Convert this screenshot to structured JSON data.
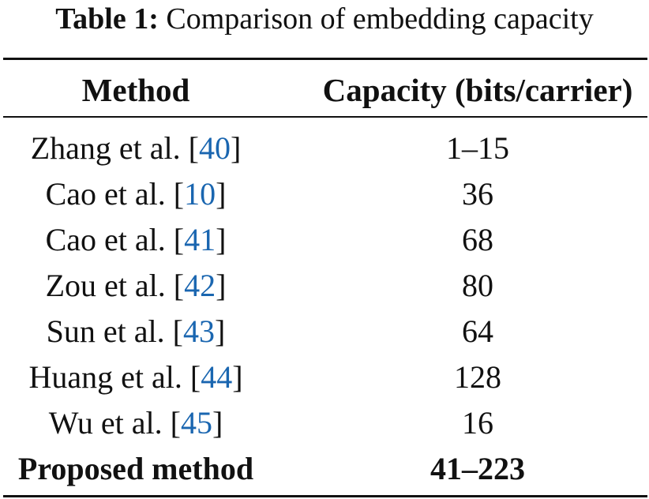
{
  "caption": {
    "label": "Table 1:",
    "text": "Comparison of embedding capacity"
  },
  "header": {
    "method": "Method",
    "capacity": "Capacity (bits/carrier)"
  },
  "rows": [
    {
      "method": "Zhang et al.",
      "ref": "40",
      "capacity": "1–15"
    },
    {
      "method": "Cao et al.",
      "ref": "10",
      "capacity": "36"
    },
    {
      "method": "Cao et al.",
      "ref": "41",
      "capacity": "68"
    },
    {
      "method": "Zou et al.",
      "ref": "42",
      "capacity": "80"
    },
    {
      "method": "Sun et al.",
      "ref": "43",
      "capacity": "64"
    },
    {
      "method": "Huang et al.",
      "ref": "44",
      "capacity": "128"
    },
    {
      "method": "Wu et al.",
      "ref": "45",
      "capacity": "16"
    }
  ],
  "proposed": {
    "method": "Proposed method",
    "capacity": "41–223"
  },
  "colors": {
    "reference_link": "#1a66b0",
    "text": "#111111"
  }
}
